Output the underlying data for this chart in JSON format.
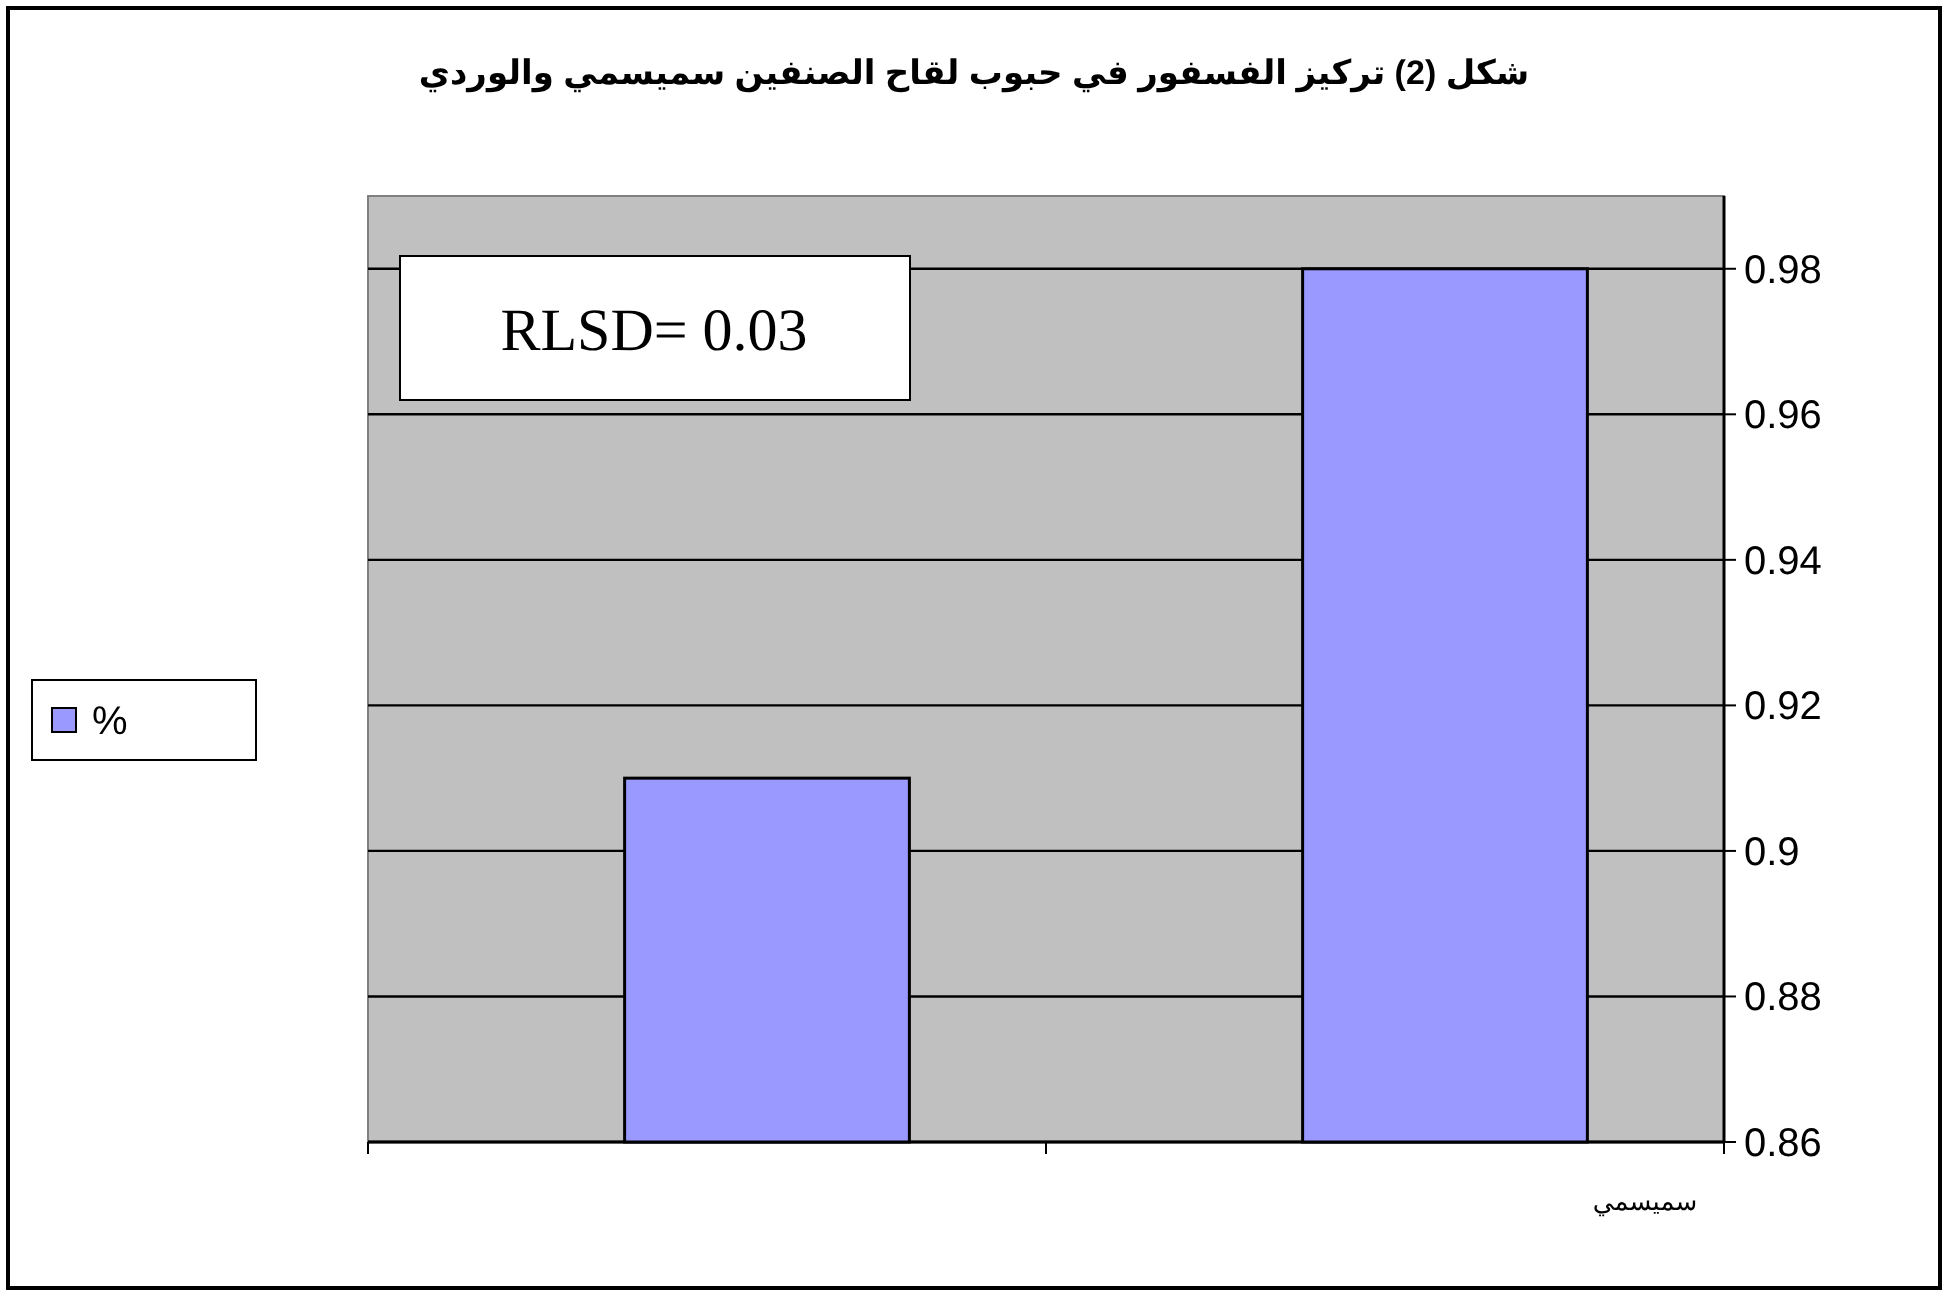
{
  "chart_data": {
    "type": "bar",
    "title": "شكل (2) تركيز الفسفور في حبوب لقاح الصنفين سميسمي والوردي",
    "categories": [
      null,
      "سميسمي"
    ],
    "series": [
      {
        "name": "%",
        "color": "#9999ff",
        "values": [
          0.91,
          0.98
        ]
      }
    ],
    "ylim": [
      0.86,
      0.99
    ],
    "yticks": [
      0.86,
      0.88,
      0.9,
      0.92,
      0.94,
      0.96,
      0.98
    ],
    "grid": "y",
    "legend": "left",
    "annotations": [
      "RLSD= 0.03"
    ]
  }
}
